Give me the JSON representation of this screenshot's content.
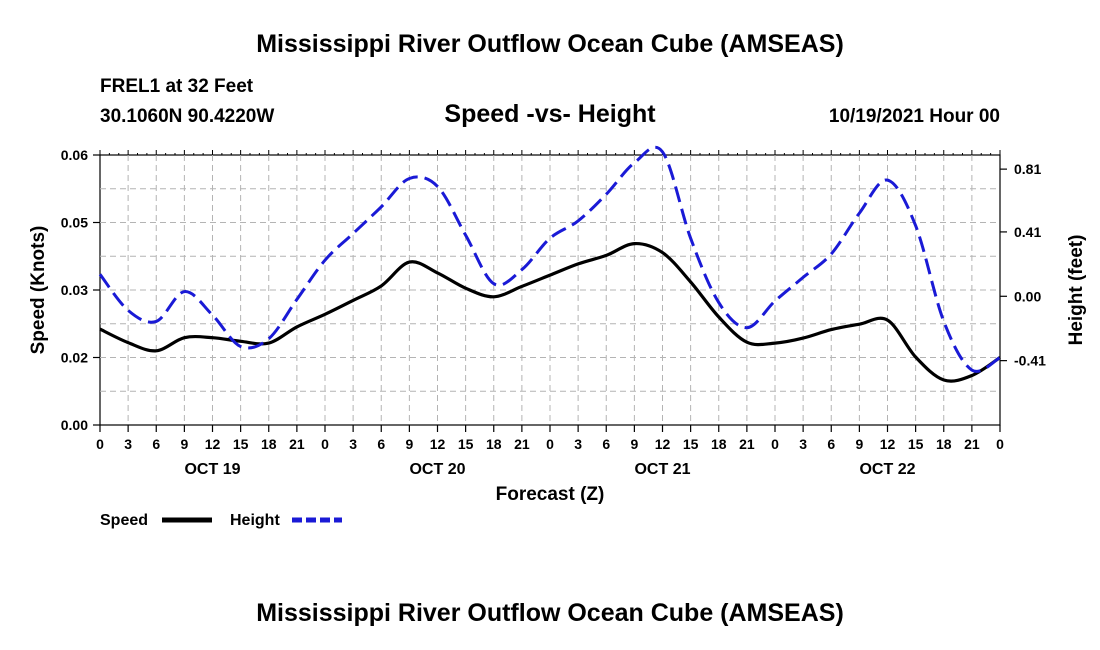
{
  "page": {
    "title": "Mississippi River Outflow Ocean Cube (AMSEAS)",
    "footer_title": "Mississippi River Outflow Ocean Cube (AMSEAS)",
    "station_line": "FREL1 at 32 Feet",
    "coords_line": "30.1060N  90.4220W",
    "subtitle": "Speed -vs- Height",
    "datetime": "10/19/2021 Hour 00"
  },
  "colors": {
    "speed": "#000000",
    "height": "#1a1ad6",
    "grid": "#b4b4b4"
  },
  "chart_data": {
    "type": "line",
    "title": "Speed -vs- Height",
    "xlabel": "Forecast (Z)",
    "ylabel": "Speed (Knots)",
    "y2label": "Height (feet)",
    "x_range": [
      0,
      96
    ],
    "x_tick_labels": [
      "0",
      "3",
      "6",
      "9",
      "12",
      "15",
      "18",
      "21",
      "0",
      "3",
      "6",
      "9",
      "12",
      "15",
      "18",
      "21",
      "0",
      "3",
      "6",
      "9",
      "12",
      "15",
      "18",
      "21",
      "0",
      "3",
      "6",
      "9",
      "12",
      "15",
      "18",
      "21",
      "0"
    ],
    "day_labels": [
      {
        "label": "OCT 19",
        "x": 12
      },
      {
        "label": "OCT 20",
        "x": 36
      },
      {
        "label": "OCT 21",
        "x": 60
      },
      {
        "label": "OCT 22",
        "x": 84
      }
    ],
    "y_left": {
      "ylim": [
        0.0,
        0.06
      ],
      "tick_values": [
        0.0,
        0.015,
        0.03,
        0.045,
        0.06
      ],
      "tick_labels": [
        "0.00",
        "0.02",
        "0.03",
        "0.05",
        "0.06"
      ]
    },
    "y_right": {
      "ylim": [
        -0.82,
        0.9
      ],
      "tick_values": [
        -0.41,
        0.0,
        0.41,
        0.81
      ],
      "tick_labels": [
        "-0.41",
        "0.00",
        "0.41",
        "0.81"
      ]
    },
    "legend": [
      {
        "label": "Speed",
        "series": "Speed",
        "style": "solid"
      },
      {
        "label": "Height",
        "series": "Height",
        "style": "dashed"
      }
    ],
    "series": [
      {
        "name": "Speed",
        "axis": "left",
        "x": [
          0,
          3,
          6,
          9,
          12,
          15,
          18,
          21,
          24,
          27,
          30,
          33,
          36,
          39,
          42,
          45,
          48,
          51,
          54,
          57,
          60,
          63,
          66,
          69,
          72,
          75,
          78,
          81,
          84,
          87,
          90,
          93,
          96
        ],
        "values": [
          0.0213,
          0.0183,
          0.0165,
          0.0194,
          0.0194,
          0.0186,
          0.0182,
          0.0218,
          0.0246,
          0.0277,
          0.0309,
          0.0362,
          0.0338,
          0.0304,
          0.0285,
          0.0308,
          0.0333,
          0.0358,
          0.0377,
          0.0403,
          0.0383,
          0.0318,
          0.024,
          0.0184,
          0.0182,
          0.0193,
          0.0212,
          0.0224,
          0.0233,
          0.0151,
          0.01,
          0.011,
          0.015
        ]
      },
      {
        "name": "Height",
        "axis": "right",
        "x": [
          0,
          3,
          6,
          9,
          12,
          15,
          18,
          21,
          24,
          27,
          30,
          33,
          36,
          39,
          42,
          45,
          48,
          51,
          54,
          57,
          60,
          63,
          66,
          69,
          72,
          75,
          78,
          81,
          84,
          87,
          90,
          93,
          96
        ],
        "values": [
          0.14,
          -0.09,
          -0.16,
          0.03,
          -0.12,
          -0.32,
          -0.27,
          -0.02,
          0.23,
          0.4,
          0.57,
          0.75,
          0.7,
          0.39,
          0.08,
          0.17,
          0.37,
          0.48,
          0.65,
          0.85,
          0.92,
          0.37,
          -0.04,
          -0.2,
          -0.03,
          0.12,
          0.27,
          0.53,
          0.74,
          0.45,
          -0.16,
          -0.47,
          -0.39
        ]
      }
    ]
  }
}
